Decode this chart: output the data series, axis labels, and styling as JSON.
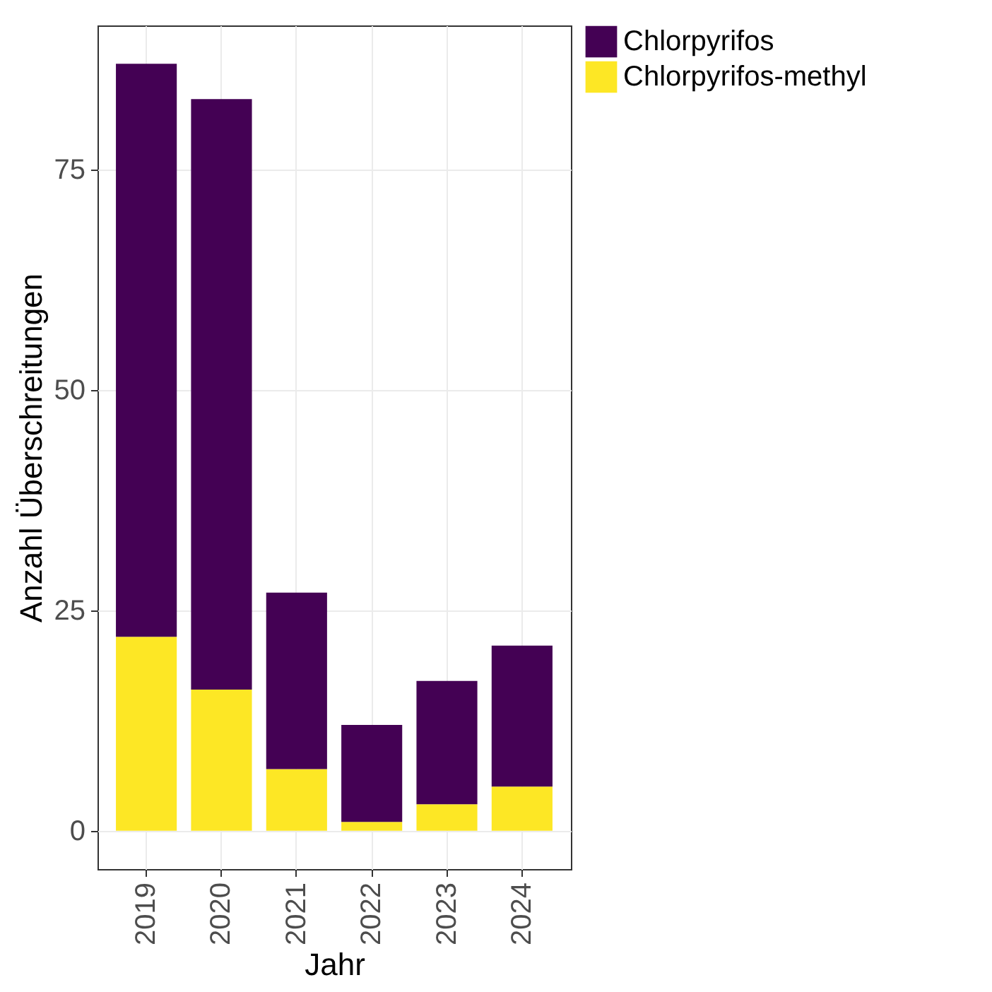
{
  "chart_data": {
    "type": "bar",
    "xlabel": "Jahr",
    "ylabel": "Anzahl Überschreitungen",
    "categories": [
      "2019",
      "2020",
      "2021",
      "2022",
      "2023",
      "2024"
    ],
    "series": [
      {
        "name": "Chlorpyrifos-methyl",
        "color": "#fde725",
        "values": [
          22,
          16,
          7,
          1,
          3,
          5
        ]
      },
      {
        "name": "Chlorpyrifos",
        "color": "#440154",
        "values": [
          65,
          67,
          20,
          11,
          14,
          16
        ]
      }
    ],
    "stacked": true,
    "ylim": [
      -4.35,
      91.35
    ],
    "yticks": [
      0,
      25,
      50,
      75
    ],
    "grid": true,
    "legend": "right"
  }
}
